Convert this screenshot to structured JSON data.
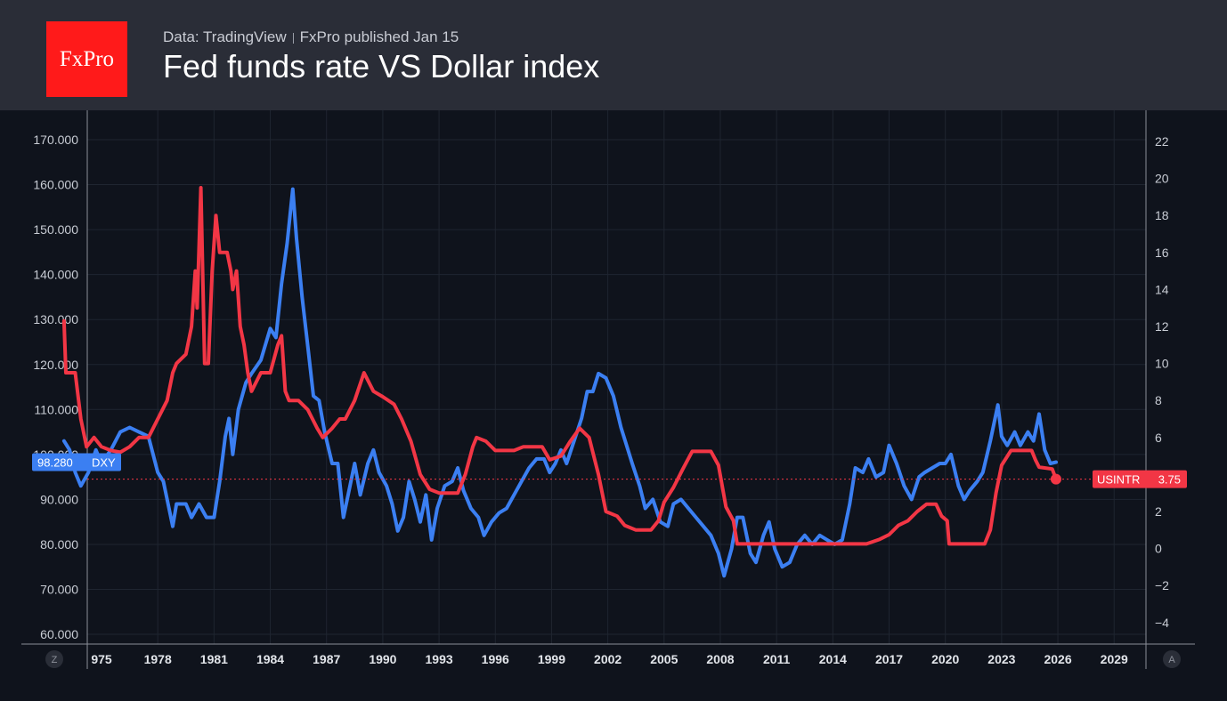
{
  "header": {
    "logo": "FxPro",
    "source": "Data: TradingView",
    "publisher": "FxPro published Jan 15",
    "title": "Fed funds rate VS Dollar index"
  },
  "scale_buttons": {
    "left": "Z",
    "right": "A"
  },
  "chart_data": {
    "type": "line",
    "title": "Fed funds rate VS Dollar index",
    "x_ticks": [
      "975",
      "1978",
      "1981",
      "1984",
      "1987",
      "1990",
      "1993",
      "1996",
      "1999",
      "2002",
      "2005",
      "2008",
      "2011",
      "2014",
      "2017",
      "2020",
      "2023",
      "2026",
      "2029"
    ],
    "left_axis": {
      "ticks": [
        "170.000",
        "160.000",
        "150.000",
        "140.000",
        "130.000",
        "120.000",
        "110.000",
        "100.000",
        "90.000",
        "80.000",
        "70.000",
        "60.000"
      ],
      "range": [
        60,
        170
      ]
    },
    "right_axis": {
      "ticks": [
        "22",
        "20",
        "18",
        "16",
        "14",
        "12",
        "10",
        "8",
        "6",
        "4",
        "2",
        "0",
        "−2",
        "−4"
      ],
      "range": [
        -4,
        22
      ]
    },
    "colors": {
      "DXY": "#3b7ff2",
      "USINTR": "#f23645"
    },
    "series": [
      {
        "name": "DXY",
        "axis": "left",
        "last_value_label": "98.280",
        "points": [
          [
            1973.0,
            103
          ],
          [
            1973.3,
            101
          ],
          [
            1973.6,
            96
          ],
          [
            1973.9,
            93
          ],
          [
            1974.3,
            96
          ],
          [
            1974.7,
            101
          ],
          [
            1975.0,
            98
          ],
          [
            1975.5,
            101
          ],
          [
            1976.0,
            105
          ],
          [
            1976.5,
            106
          ],
          [
            1977.0,
            105
          ],
          [
            1977.5,
            104
          ],
          [
            1978.0,
            96
          ],
          [
            1978.3,
            94
          ],
          [
            1978.6,
            88
          ],
          [
            1978.8,
            84
          ],
          [
            1979.0,
            89
          ],
          [
            1979.5,
            89
          ],
          [
            1979.8,
            86
          ],
          [
            1980.2,
            89
          ],
          [
            1980.6,
            86
          ],
          [
            1981.0,
            86
          ],
          [
            1981.3,
            94
          ],
          [
            1981.6,
            104
          ],
          [
            1981.8,
            108
          ],
          [
            1982.0,
            100
          ],
          [
            1982.3,
            110
          ],
          [
            1982.7,
            116
          ],
          [
            1983.0,
            118
          ],
          [
            1983.5,
            121
          ],
          [
            1984.0,
            128
          ],
          [
            1984.3,
            126
          ],
          [
            1984.6,
            138
          ],
          [
            1984.9,
            147
          ],
          [
            1985.2,
            159
          ],
          [
            1985.4,
            148
          ],
          [
            1985.7,
            135
          ],
          [
            1986.0,
            124
          ],
          [
            1986.3,
            113
          ],
          [
            1986.6,
            112
          ],
          [
            1986.9,
            105
          ],
          [
            1987.3,
            98
          ],
          [
            1987.6,
            98
          ],
          [
            1987.9,
            86
          ],
          [
            1988.2,
            92
          ],
          [
            1988.5,
            98
          ],
          [
            1988.8,
            91
          ],
          [
            1989.2,
            98
          ],
          [
            1989.5,
            101
          ],
          [
            1989.8,
            96
          ],
          [
            1990.2,
            93
          ],
          [
            1990.5,
            89
          ],
          [
            1990.8,
            83
          ],
          [
            1991.1,
            86
          ],
          [
            1991.4,
            94
          ],
          [
            1991.7,
            90
          ],
          [
            1992.0,
            85
          ],
          [
            1992.3,
            91
          ],
          [
            1992.6,
            81
          ],
          [
            1992.9,
            88
          ],
          [
            1993.3,
            93
          ],
          [
            1993.7,
            94
          ],
          [
            1994.0,
            97
          ],
          [
            1994.3,
            92
          ],
          [
            1994.7,
            88
          ],
          [
            1995.1,
            86
          ],
          [
            1995.4,
            82
          ],
          [
            1995.8,
            85
          ],
          [
            1996.2,
            87
          ],
          [
            1996.6,
            88
          ],
          [
            1997.0,
            91
          ],
          [
            1997.4,
            94
          ],
          [
            1997.8,
            97
          ],
          [
            1998.2,
            99
          ],
          [
            1998.6,
            99
          ],
          [
            1998.9,
            96
          ],
          [
            1999.2,
            98
          ],
          [
            1999.5,
            101
          ],
          [
            1999.8,
            98
          ],
          [
            2000.2,
            103
          ],
          [
            2000.6,
            108
          ],
          [
            2000.9,
            114
          ],
          [
            2001.2,
            114
          ],
          [
            2001.5,
            118
          ],
          [
            2001.9,
            117
          ],
          [
            2002.3,
            113
          ],
          [
            2002.7,
            106
          ],
          [
            2003.0,
            102
          ],
          [
            2003.3,
            98
          ],
          [
            2003.7,
            93
          ],
          [
            2004.0,
            88
          ],
          [
            2004.4,
            90
          ],
          [
            2004.8,
            85
          ],
          [
            2005.2,
            84
          ],
          [
            2005.5,
            89
          ],
          [
            2005.9,
            90
          ],
          [
            2006.3,
            88
          ],
          [
            2006.7,
            86
          ],
          [
            2007.1,
            84
          ],
          [
            2007.5,
            82
          ],
          [
            2007.9,
            78
          ],
          [
            2008.2,
            73
          ],
          [
            2008.6,
            79
          ],
          [
            2008.9,
            86
          ],
          [
            2009.2,
            86
          ],
          [
            2009.6,
            78
          ],
          [
            2009.9,
            76
          ],
          [
            2010.3,
            82
          ],
          [
            2010.6,
            85
          ],
          [
            2010.9,
            79
          ],
          [
            2011.3,
            75
          ],
          [
            2011.7,
            76
          ],
          [
            2012.1,
            80
          ],
          [
            2012.5,
            82
          ],
          [
            2012.9,
            80
          ],
          [
            2013.3,
            82
          ],
          [
            2013.7,
            81
          ],
          [
            2014.1,
            80
          ],
          [
            2014.5,
            81
          ],
          [
            2014.9,
            89
          ],
          [
            2015.2,
            97
          ],
          [
            2015.6,
            96
          ],
          [
            2015.9,
            99
          ],
          [
            2016.3,
            95
          ],
          [
            2016.7,
            96
          ],
          [
            2017.0,
            102
          ],
          [
            2017.4,
            98
          ],
          [
            2017.8,
            93
          ],
          [
            2018.2,
            90
          ],
          [
            2018.6,
            95
          ],
          [
            2018.9,
            96
          ],
          [
            2019.3,
            97
          ],
          [
            2019.7,
            98
          ],
          [
            2020.0,
            98
          ],
          [
            2020.3,
            100
          ],
          [
            2020.7,
            93
          ],
          [
            2021.0,
            90
          ],
          [
            2021.3,
            92
          ],
          [
            2021.7,
            94
          ],
          [
            2022.0,
            96
          ],
          [
            2022.4,
            103
          ],
          [
            2022.8,
            111
          ],
          [
            2023.0,
            104
          ],
          [
            2023.3,
            102
          ],
          [
            2023.7,
            105
          ],
          [
            2024.0,
            102
          ],
          [
            2024.4,
            105
          ],
          [
            2024.7,
            103
          ],
          [
            2025.0,
            109
          ],
          [
            2025.3,
            101
          ],
          [
            2025.6,
            98
          ],
          [
            2025.9,
            98.28
          ]
        ]
      },
      {
        "name": "USINTR",
        "axis": "right",
        "last_value_label": "3.75",
        "points": [
          [
            1973.0,
            12.3
          ],
          [
            1973.1,
            9.5
          ],
          [
            1973.6,
            9.5
          ],
          [
            1973.9,
            7
          ],
          [
            1974.2,
            5.5
          ],
          [
            1974.6,
            6
          ],
          [
            1975.0,
            5.5
          ],
          [
            1975.5,
            5.3
          ],
          [
            1976.0,
            5.2
          ],
          [
            1976.5,
            5.5
          ],
          [
            1977.0,
            6
          ],
          [
            1977.5,
            6
          ],
          [
            1978.0,
            7
          ],
          [
            1978.5,
            8
          ],
          [
            1978.8,
            9.5
          ],
          [
            1979.0,
            10
          ],
          [
            1979.5,
            10.5
          ],
          [
            1979.8,
            12
          ],
          [
            1980.0,
            15
          ],
          [
            1980.1,
            13
          ],
          [
            1980.3,
            19.5
          ],
          [
            1980.5,
            10
          ],
          [
            1980.7,
            10
          ],
          [
            1980.9,
            15
          ],
          [
            1981.1,
            18
          ],
          [
            1981.3,
            16
          ],
          [
            1981.7,
            16
          ],
          [
            1981.9,
            15
          ],
          [
            1982.0,
            14
          ],
          [
            1982.2,
            15
          ],
          [
            1982.4,
            12
          ],
          [
            1982.6,
            11
          ],
          [
            1982.8,
            9.5
          ],
          [
            1983.0,
            8.5
          ],
          [
            1983.5,
            9.5
          ],
          [
            1984.0,
            9.5
          ],
          [
            1984.4,
            11
          ],
          [
            1984.6,
            11.5
          ],
          [
            1984.8,
            8.5
          ],
          [
            1985.0,
            8
          ],
          [
            1985.5,
            8
          ],
          [
            1986.0,
            7.5
          ],
          [
            1986.5,
            6.5
          ],
          [
            1986.8,
            6
          ],
          [
            1987.3,
            6.5
          ],
          [
            1987.7,
            7
          ],
          [
            1988.0,
            7
          ],
          [
            1988.5,
            8
          ],
          [
            1989.0,
            9.5
          ],
          [
            1989.5,
            8.5
          ],
          [
            1990.0,
            8.2
          ],
          [
            1990.6,
            7.8
          ],
          [
            1991.0,
            7
          ],
          [
            1991.5,
            5.8
          ],
          [
            1992.0,
            4
          ],
          [
            1992.5,
            3.2
          ],
          [
            1993.0,
            3
          ],
          [
            1994.0,
            3
          ],
          [
            1994.4,
            4
          ],
          [
            1994.8,
            5.5
          ],
          [
            1995.0,
            6
          ],
          [
            1995.5,
            5.8
          ],
          [
            1996.0,
            5.3
          ],
          [
            1997.0,
            5.3
          ],
          [
            1997.5,
            5.5
          ],
          [
            1998.5,
            5.5
          ],
          [
            1998.9,
            4.8
          ],
          [
            1999.5,
            5
          ],
          [
            2000.0,
            5.8
          ],
          [
            2000.5,
            6.5
          ],
          [
            2001.0,
            6
          ],
          [
            2001.5,
            4
          ],
          [
            2001.9,
            2
          ],
          [
            2002.5,
            1.75
          ],
          [
            2002.9,
            1.25
          ],
          [
            2003.5,
            1
          ],
          [
            2004.3,
            1
          ],
          [
            2004.7,
            1.5
          ],
          [
            2005.0,
            2.5
          ],
          [
            2005.5,
            3.3
          ],
          [
            2006.0,
            4.3
          ],
          [
            2006.5,
            5.25
          ],
          [
            2007.5,
            5.25
          ],
          [
            2007.9,
            4.5
          ],
          [
            2008.3,
            2.25
          ],
          [
            2008.7,
            1.5
          ],
          [
            2008.9,
            0.25
          ],
          [
            2015.8,
            0.25
          ],
          [
            2016.5,
            0.5
          ],
          [
            2017.0,
            0.75
          ],
          [
            2017.5,
            1.25
          ],
          [
            2018.0,
            1.5
          ],
          [
            2018.5,
            2
          ],
          [
            2019.0,
            2.4
          ],
          [
            2019.5,
            2.4
          ],
          [
            2019.8,
            1.75
          ],
          [
            2020.1,
            1.5
          ],
          [
            2020.2,
            0.25
          ],
          [
            2022.1,
            0.25
          ],
          [
            2022.4,
            1
          ],
          [
            2022.7,
            3
          ],
          [
            2023.0,
            4.5
          ],
          [
            2023.5,
            5.3
          ],
          [
            2024.6,
            5.3
          ],
          [
            2024.8,
            4.8
          ],
          [
            2025.0,
            4.4
          ],
          [
            2025.7,
            4.3
          ],
          [
            2025.9,
            3.75
          ]
        ]
      }
    ]
  }
}
